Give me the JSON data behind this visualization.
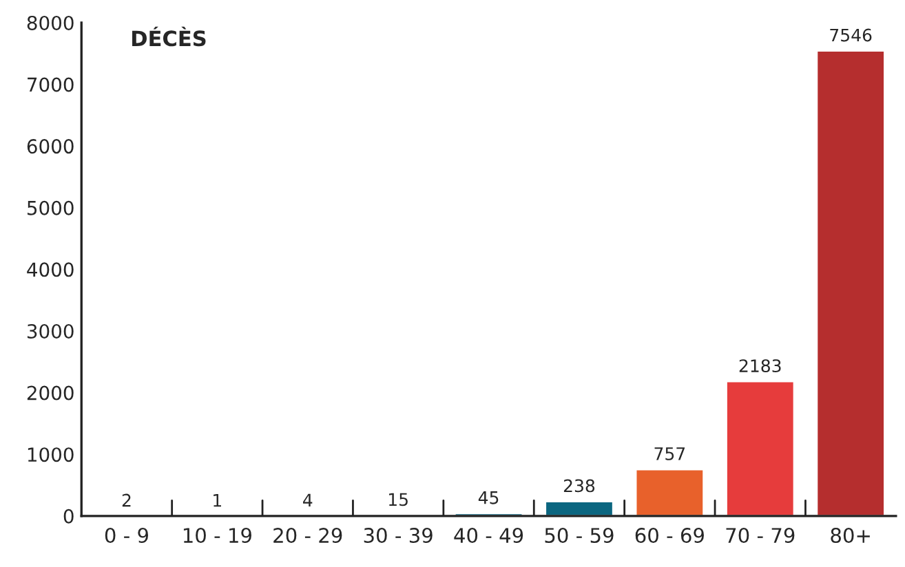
{
  "chart_data": {
    "type": "bar",
    "title": "DÉCÈS",
    "categories": [
      "0 - 9",
      "10 - 19",
      "20 - 29",
      "30 - 39",
      "40 - 49",
      "50 - 59",
      "60 - 69",
      "70 - 79",
      "80+"
    ],
    "values": [
      2,
      1,
      4,
      15,
      45,
      238,
      757,
      2183,
      7546
    ],
    "colors": [
      "#0b6680",
      "#0b6680",
      "#0b6680",
      "#0b6680",
      "#0b6680",
      "#0b6680",
      "#e8612b",
      "#e63c3c",
      "#b52e2e"
    ],
    "ylim": [
      0,
      8000
    ],
    "yticks": [
      0,
      1000,
      2000,
      3000,
      4000,
      5000,
      6000,
      7000,
      8000
    ],
    "data_labels": true,
    "grid": false,
    "legend": false
  }
}
